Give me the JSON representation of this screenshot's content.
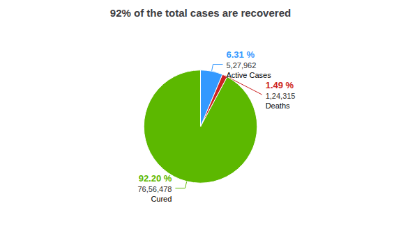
{
  "chart_data": {
    "type": "pie",
    "title": "92% of the total cases are recovered",
    "categories": [
      "Cured",
      "Deaths",
      "Active Cases"
    ],
    "values": [
      92.2,
      1.49,
      6.31
    ],
    "value_labels": [
      "92.20 %",
      "1.49 %",
      "6.31 %"
    ],
    "counts": [
      7656478,
      124315,
      527962
    ],
    "count_labels": [
      "76,56,478",
      "1,24,315",
      "5,27,962"
    ],
    "colors": [
      "#5cb800",
      "#cc2222",
      "#3399ff"
    ],
    "data_labels": true
  }
}
